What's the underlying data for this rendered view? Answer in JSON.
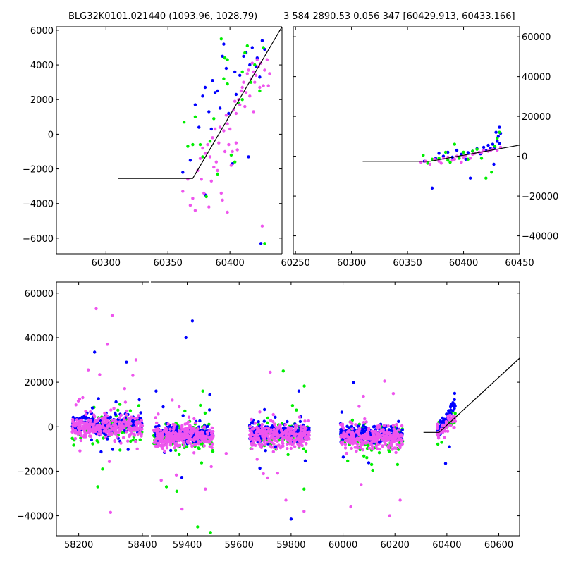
{
  "title_left": "BLG32K0101.021440 (1093.96, 1028.79)",
  "title_right": "3 584 2890.53 0.056 347 [60429.913, 60433.166]",
  "colors": {
    "blue": "#0000ff",
    "green": "#00ee00",
    "magenta": "#ee55ee",
    "line": "#000000"
  },
  "chart_data": [
    {
      "id": "top-left",
      "type": "scatter",
      "xlim": [
        60260,
        60442
      ],
      "ylim": [
        -6900,
        6200
      ],
      "xticks": [
        60300,
        60350,
        60400
      ],
      "yticks": [
        -6000,
        -4000,
        -2000,
        0,
        2000,
        4000,
        6000
      ],
      "model_line": [
        [
          60310,
          -2550
        ],
        [
          60370,
          -2550
        ],
        [
          60442,
          6200
        ]
      ],
      "series": [
        {
          "color": "blue",
          "points": [
            [
              60362,
              -2200
            ],
            [
              60368,
              -1500
            ],
            [
              60372,
              1700
            ],
            [
              60375,
              400
            ],
            [
              60378,
              2200
            ],
            [
              60380,
              2700
            ],
            [
              60383,
              1300
            ],
            [
              60386,
              3100
            ],
            [
              60388,
              2400
            ],
            [
              60390,
              2500
            ],
            [
              60392,
              1500
            ],
            [
              60394,
              4500
            ],
            [
              60397,
              3800
            ],
            [
              60399,
              1200
            ],
            [
              60402,
              -1700
            ],
            [
              60405,
              2300
            ],
            [
              60408,
              3400
            ],
            [
              60411,
              4500
            ],
            [
              60413,
              4700
            ],
            [
              60415,
              -1300
            ],
            [
              60418,
              5000
            ],
            [
              60421,
              3900
            ],
            [
              60424,
              3300
            ],
            [
              60426,
              5400
            ],
            [
              60428,
              4900
            ],
            [
              60425,
              -6300
            ],
            [
              60380,
              -3500
            ],
            [
              60385,
              300
            ],
            [
              60395,
              5200
            ],
            [
              60404,
              3600
            ],
            [
              60416,
              4000
            ],
            [
              60422,
              4400
            ]
          ]
        },
        {
          "color": "green",
          "points": [
            [
              60363,
              700
            ],
            [
              60366,
              -700
            ],
            [
              60370,
              -600
            ],
            [
              60372,
              1000
            ],
            [
              60378,
              -1300
            ],
            [
              60381,
              -3600
            ],
            [
              60384,
              -400
            ],
            [
              60387,
              900
            ],
            [
              60390,
              -2300
            ],
            [
              60393,
              5500
            ],
            [
              60396,
              4400
            ],
            [
              60398,
              2900
            ],
            [
              60401,
              -1200
            ],
            [
              60404,
              -1600
            ],
            [
              60407,
              1800
            ],
            [
              60410,
              3600
            ],
            [
              60412,
              4700
            ],
            [
              60414,
              5100
            ],
            [
              60417,
              3000
            ],
            [
              60420,
              4000
            ],
            [
              60424,
              2500
            ],
            [
              60427,
              5000
            ],
            [
              60428,
              -6300
            ],
            [
              60376,
              -600
            ],
            [
              60395,
              3200
            ],
            [
              60410,
              2000
            ],
            [
              60398,
              4300
            ]
          ]
        },
        {
          "color": "magenta",
          "points": [
            [
              60362,
              -3300
            ],
            [
              60366,
              -2600
            ],
            [
              60368,
              -4100
            ],
            [
              60370,
              -3700
            ],
            [
              60372,
              -4400
            ],
            [
              60374,
              -2100
            ],
            [
              60376,
              -1400
            ],
            [
              60378,
              -800
            ],
            [
              60379,
              -3400
            ],
            [
              60380,
              -1100
            ],
            [
              60382,
              -600
            ],
            [
              60384,
              -1300
            ],
            [
              60385,
              -2700
            ],
            [
              60386,
              -200
            ],
            [
              60388,
              300
            ],
            [
              60389,
              -1600
            ],
            [
              60390,
              -2100
            ],
            [
              60391,
              -500
            ],
            [
              60392,
              400
            ],
            [
              60393,
              -3400
            ],
            [
              60394,
              -3800
            ],
            [
              60395,
              200
            ],
            [
              60396,
              -1000
            ],
            [
              60397,
              1100
            ],
            [
              60398,
              600
            ],
            [
              60399,
              -600
            ],
            [
              60400,
              300
            ],
            [
              60401,
              -1800
            ],
            [
              60402,
              -1000
            ],
            [
              60403,
              1400
            ],
            [
              60404,
              1900
            ],
            [
              60405,
              1200
            ],
            [
              60406,
              -900
            ],
            [
              60407,
              2000
            ],
            [
              60408,
              1700
            ],
            [
              60409,
              2500
            ],
            [
              60410,
              2700
            ],
            [
              60411,
              3000
            ],
            [
              60412,
              1600
            ],
            [
              60413,
              2400
            ],
            [
              60414,
              3500
            ],
            [
              60415,
              3700
            ],
            [
              60416,
              2200
            ],
            [
              60417,
              3200
            ],
            [
              60418,
              4100
            ],
            [
              60419,
              3600
            ],
            [
              60420,
              3000
            ],
            [
              60421,
              3400
            ],
            [
              60422,
              4300
            ],
            [
              60423,
              3900
            ],
            [
              60424,
              2700
            ],
            [
              60425,
              4100
            ],
            [
              60426,
              -5300
            ],
            [
              60427,
              2800
            ],
            [
              60428,
              3700
            ],
            [
              60430,
              4300
            ],
            [
              60431,
              2800
            ],
            [
              60432,
              3500
            ],
            [
              60377,
              -2600
            ],
            [
              60383,
              -4200
            ],
            [
              60387,
              -1900
            ],
            [
              60398,
              -4500
            ],
            [
              60405,
              -500
            ],
            [
              60419,
              1300
            ]
          ]
        }
      ]
    },
    {
      "id": "top-right",
      "type": "scatter",
      "xlim": [
        60248,
        60450
      ],
      "ylim": [
        -49000,
        65000
      ],
      "xticks": [
        60250,
        60300,
        60350,
        60400,
        60450
      ],
      "yticks": [
        -40000,
        -20000,
        0,
        20000,
        40000,
        60000
      ],
      "model_line": [
        [
          60310,
          -2550
        ],
        [
          60370,
          -2550
        ],
        [
          60450,
          5600
        ]
      ],
      "series": [
        {
          "color": "blue",
          "points": [
            [
              60365,
              -2500
            ],
            [
              60372,
              -16000
            ],
            [
              60375,
              -1000
            ],
            [
              60378,
              1500
            ],
            [
              60382,
              0
            ],
            [
              60386,
              2000
            ],
            [
              60390,
              -500
            ],
            [
              60394,
              3000
            ],
            [
              60398,
              1000
            ],
            [
              60402,
              -1500
            ],
            [
              60406,
              -11000
            ],
            [
              60408,
              2500
            ],
            [
              60412,
              3800
            ],
            [
              60415,
              1200
            ],
            [
              60418,
              4500
            ],
            [
              60420,
              3000
            ],
            [
              60422,
              5500
            ],
            [
              60424,
              4000
            ],
            [
              60426,
              6000
            ],
            [
              60428,
              4500
            ],
            [
              60429,
              12000
            ],
            [
              60430,
              8000
            ],
            [
              60431,
              10000
            ],
            [
              60432,
              14500
            ],
            [
              60433,
              11500
            ],
            [
              60430,
              7500
            ],
            [
              60432,
              6500
            ],
            [
              60427,
              -4000
            ],
            [
              60396,
              -1000
            ],
            [
              60404,
              1800
            ]
          ]
        },
        {
          "color": "green",
          "points": [
            [
              60364,
              500
            ],
            [
              60368,
              -3500
            ],
            [
              60372,
              -1500
            ],
            [
              60378,
              -1000
            ],
            [
              60384,
              2000
            ],
            [
              60388,
              -3000
            ],
            [
              60392,
              6000
            ],
            [
              60396,
              -1000
            ],
            [
              60400,
              2000
            ],
            [
              60404,
              -1500
            ],
            [
              60408,
              2500
            ],
            [
              60412,
              3500
            ],
            [
              60416,
              -1000
            ],
            [
              60420,
              -11000
            ],
            [
              60424,
              3000
            ],
            [
              60428,
              5000
            ],
            [
              60430,
              9000
            ],
            [
              60432,
              12000
            ],
            [
              60425,
              -8000
            ],
            [
              60386,
              -2000
            ]
          ]
        },
        {
          "color": "magenta",
          "points": [
            [
              60362,
              -3000
            ],
            [
              60366,
              -2500
            ],
            [
              60370,
              -4000
            ],
            [
              60374,
              -1500
            ],
            [
              60378,
              -2500
            ],
            [
              60382,
              -1000
            ],
            [
              60386,
              -500
            ],
            [
              60390,
              -2000
            ],
            [
              60394,
              0
            ],
            [
              60398,
              -3000
            ],
            [
              60402,
              500
            ],
            [
              60406,
              -1000
            ],
            [
              60410,
              1500
            ],
            [
              60414,
              2000
            ],
            [
              60418,
              3000
            ],
            [
              60422,
              2500
            ],
            [
              60426,
              3500
            ],
            [
              60430,
              3000
            ],
            [
              60433,
              4500
            ],
            [
              60380,
              -3500
            ],
            [
              60392,
              -1500
            ],
            [
              60400,
              -500
            ],
            [
              60408,
              1000
            ],
            [
              60416,
              1800
            ],
            [
              60424,
              2800
            ]
          ]
        }
      ]
    },
    {
      "id": "bottom",
      "type": "scatter",
      "ylim": [
        -49000,
        65000
      ],
      "yticks": [
        -40000,
        -20000,
        0,
        20000,
        40000,
        60000
      ],
      "segments": [
        {
          "xlim": [
            58130,
            58420
          ],
          "xticks": [
            58200,
            58400
          ]
        },
        {
          "xlim": [
            59260,
            60680
          ],
          "xticks": [
            59400,
            59600,
            59800,
            60000,
            60200,
            60400,
            60600
          ]
        }
      ],
      "model_line": [
        [
          60310,
          -2550
        ],
        [
          60370,
          -2550
        ],
        [
          60680,
          30800
        ]
      ],
      "clusters": [
        {
          "x0": 58180,
          "x1": 58400,
          "center": 0
        },
        {
          "x0": 59270,
          "x1": 59500,
          "center": -4500
        },
        {
          "x0": 59640,
          "x1": 59870,
          "center": -4000
        },
        {
          "x0": 59990,
          "x1": 60230,
          "center": -5000
        },
        {
          "x0": 60362,
          "x1": 60433,
          "center": 0
        }
      ],
      "outliers": {
        "blue": [
          [
            58250,
            33500
          ],
          [
            58350,
            29000
          ],
          [
            59395,
            40000
          ],
          [
            59420,
            47500
          ],
          [
            59280,
            16000
          ],
          [
            59800,
            -41500
          ],
          [
            59830,
            16000
          ],
          [
            60395,
            -16500
          ],
          [
            60430,
            15000
          ],
          [
            60410,
            -9000
          ],
          [
            58290,
            -5500
          ],
          [
            59740,
            -9000
          ],
          [
            60140,
            -7000
          ]
        ],
        "green": [
          [
            59320,
            -27000
          ],
          [
            59360,
            -29000
          ],
          [
            59440,
            -45000
          ],
          [
            59490,
            -47500
          ],
          [
            59460,
            16000
          ],
          [
            59770,
            25000
          ],
          [
            60110,
            -17000
          ],
          [
            58275,
            -19000
          ],
          [
            58330,
            -10500
          ],
          [
            58260,
            -27000
          ],
          [
            60380,
            -7000
          ],
          [
            59850,
            -28000
          ],
          [
            60210,
            -17000
          ]
        ],
        "magenta": [
          [
            58255,
            53000
          ],
          [
            58305,
            50000
          ],
          [
            58290,
            37000
          ],
          [
            58230,
            25500
          ],
          [
            58380,
            30000
          ],
          [
            58370,
            23000
          ],
          [
            58300,
            -38500
          ],
          [
            59380,
            -37000
          ],
          [
            59470,
            -28000
          ],
          [
            59720,
            24500
          ],
          [
            59780,
            -33000
          ],
          [
            59850,
            -38000
          ],
          [
            60030,
            -36000
          ],
          [
            60180,
            -40000
          ],
          [
            60220,
            -33000
          ],
          [
            60160,
            20500
          ],
          [
            59300,
            -24000
          ],
          [
            60070,
            -26000
          ],
          [
            59710,
            -23000
          ],
          [
            59550,
            -12000
          ]
        ]
      }
    }
  ]
}
